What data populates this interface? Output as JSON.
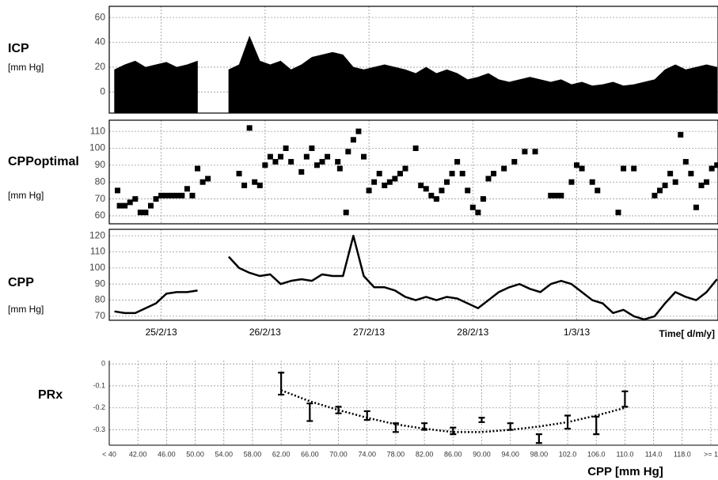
{
  "chart_data": [
    {
      "type": "area",
      "title": "ICP",
      "ylabel": "[mm Hg]",
      "color": "#000000",
      "grid": true,
      "xlim": [
        24.5,
        30.36
      ],
      "ylim": [
        -17,
        69
      ],
      "yticks": [
        0,
        20,
        40,
        60
      ],
      "x": [
        24.55,
        24.65,
        24.75,
        24.85,
        24.95,
        25.05,
        25.15,
        25.25,
        25.35,
        25.45,
        25.55,
        25.65,
        25.75,
        25.85,
        25.95,
        26.05,
        26.15,
        26.25,
        26.35,
        26.45,
        26.55,
        26.65,
        26.75,
        26.85,
        26.95,
        27.05,
        27.15,
        27.25,
        27.35,
        27.45,
        27.55,
        27.65,
        27.75,
        27.85,
        27.95,
        28.05,
        28.15,
        28.25,
        28.35,
        28.45,
        28.55,
        28.65,
        28.75,
        28.85,
        28.95,
        29.05,
        29.15,
        29.25,
        29.35,
        29.45,
        29.55,
        29.65,
        29.75,
        29.85,
        29.95,
        30.05,
        30.15,
        30.25,
        30.35
      ],
      "values": [
        18,
        22,
        25,
        20,
        22,
        24,
        20,
        22,
        25,
        null,
        null,
        18,
        22,
        45,
        25,
        22,
        25,
        18,
        22,
        28,
        30,
        32,
        30,
        20,
        18,
        20,
        22,
        20,
        18,
        15,
        20,
        15,
        18,
        15,
        10,
        12,
        15,
        10,
        8,
        10,
        12,
        10,
        8,
        10,
        6,
        8,
        5,
        6,
        8,
        5,
        6,
        8,
        10,
        18,
        22,
        18,
        20,
        22,
        20
      ]
    },
    {
      "type": "scatter",
      "title": "CPPoptimal",
      "ylabel": "[mm Hg]",
      "color": "#000000",
      "grid": true,
      "xlim": [
        24.5,
        30.36
      ],
      "ylim": [
        55.3,
        116.6
      ],
      "yticks": [
        60,
        70,
        80,
        90,
        100,
        110
      ],
      "x": [
        24.58,
        24.6,
        24.65,
        24.7,
        24.75,
        24.8,
        24.85,
        24.9,
        24.95,
        25.0,
        25.05,
        25.1,
        25.15,
        25.2,
        25.25,
        25.3,
        25.35,
        25.4,
        25.45,
        25.75,
        25.8,
        25.85,
        25.9,
        25.95,
        26.0,
        26.05,
        26.1,
        26.15,
        26.2,
        26.25,
        26.35,
        26.4,
        26.45,
        26.5,
        26.55,
        26.6,
        26.7,
        26.72,
        26.78,
        26.8,
        26.85,
        26.9,
        26.95,
        27.0,
        27.05,
        27.1,
        27.15,
        27.2,
        27.25,
        27.3,
        27.35,
        27.45,
        27.5,
        27.55,
        27.6,
        27.65,
        27.7,
        27.75,
        27.8,
        27.85,
        27.9,
        27.95,
        28.0,
        28.05,
        28.1,
        28.15,
        28.2,
        28.3,
        28.4,
        28.5,
        28.6,
        28.75,
        28.8,
        28.85,
        28.95,
        29.0,
        29.05,
        29.15,
        29.2,
        29.4,
        29.45,
        29.55,
        29.75,
        29.8,
        29.85,
        29.9,
        29.95,
        30.0,
        30.05,
        30.1,
        30.15,
        30.2,
        30.25,
        30.3,
        30.35
      ],
      "values": [
        75,
        66,
        66,
        68,
        70,
        62,
        62,
        66,
        70,
        72,
        72,
        72,
        72,
        72,
        76,
        72,
        88,
        80,
        82,
        85,
        78,
        112,
        80,
        78,
        90,
        95,
        92,
        95,
        100,
        92,
        86,
        95,
        100,
        90,
        92,
        95,
        92,
        88,
        62,
        98,
        105,
        110,
        95,
        75,
        80,
        85,
        78,
        80,
        82,
        85,
        88,
        100,
        78,
        76,
        72,
        70,
        75,
        80,
        85,
        92,
        85,
        75,
        65,
        62,
        70,
        82,
        85,
        88,
        92,
        98,
        98,
        72,
        72,
        72,
        80,
        90,
        88,
        80,
        75,
        62,
        88,
        88,
        72,
        75,
        78,
        85,
        80,
        108,
        92,
        85,
        65,
        78,
        80,
        88,
        90
      ]
    },
    {
      "type": "line",
      "title": "CPP",
      "ylabel": "[mm Hg]",
      "color": "#000000",
      "grid": true,
      "xlabel": "Time[ d/m/y]",
      "xlim": [
        24.5,
        30.36
      ],
      "ylim": [
        67.5,
        124
      ],
      "yticks": [
        70,
        80,
        90,
        100,
        110,
        120
      ],
      "xticks": [
        {
          "value": 25,
          "label": "25/2/13"
        },
        {
          "value": 26,
          "label": "26/2/13"
        },
        {
          "value": 27,
          "label": "27/2/13"
        },
        {
          "value": 28,
          "label": "28/2/13"
        },
        {
          "value": 29,
          "label": "1/3/13"
        }
      ],
      "x": [
        24.55,
        24.65,
        24.75,
        24.85,
        24.95,
        25.05,
        25.15,
        25.25,
        25.35,
        25.45,
        25.55,
        25.65,
        25.75,
        25.85,
        25.95,
        26.05,
        26.15,
        26.25,
        26.35,
        26.45,
        26.55,
        26.65,
        26.75,
        26.85,
        26.95,
        27.05,
        27.15,
        27.25,
        27.35,
        27.45,
        27.55,
        27.65,
        27.75,
        27.85,
        27.95,
        28.05,
        28.15,
        28.25,
        28.35,
        28.45,
        28.55,
        28.65,
        28.75,
        28.85,
        28.95,
        29.05,
        29.15,
        29.25,
        29.35,
        29.45,
        29.55,
        29.65,
        29.75,
        29.85,
        29.95,
        30.05,
        30.15,
        30.25,
        30.35
      ],
      "values": [
        73,
        72,
        72,
        75,
        78,
        84,
        85,
        85,
        86,
        null,
        null,
        107,
        100,
        97,
        95,
        96,
        90,
        92,
        93,
        92,
        96,
        95,
        95,
        120,
        95,
        88,
        88,
        86,
        82,
        80,
        82,
        80,
        82,
        81,
        78,
        75,
        80,
        85,
        88,
        90,
        87,
        85,
        90,
        92,
        90,
        85,
        80,
        78,
        72,
        74,
        70,
        68,
        70,
        78,
        85,
        82,
        80,
        85,
        93
      ]
    },
    {
      "type": "errorbar",
      "title": "PRx",
      "color": "#000000",
      "grid": true,
      "xlabel": "CPP [mm Hg]",
      "ylim": [
        -0.37,
        0.015
      ],
      "yticks": [
        0,
        -0.1,
        -0.2,
        -0.3
      ],
      "categories": [
        "< 40",
        "42.00",
        "46.00",
        "50.00",
        "54.00",
        "58.00",
        "62.00",
        "66.00",
        "70.00",
        "74.00",
        "78.00",
        "82.00",
        "86.00",
        "90.00",
        "94.00",
        "98.00",
        "102.0",
        "106.0",
        "110.0",
        "114.0",
        "118.0",
        ">= 1"
      ],
      "values": [
        null,
        null,
        null,
        null,
        null,
        null,
        -0.09,
        -0.22,
        -0.21,
        -0.235,
        -0.29,
        -0.285,
        -0.305,
        -0.255,
        -0.285,
        -0.34,
        -0.265,
        -0.28,
        -0.16,
        null,
        null,
        null
      ],
      "errors": [
        null,
        null,
        null,
        null,
        null,
        null,
        0.05,
        0.04,
        0.015,
        0.02,
        0.02,
        0.015,
        0.015,
        0.01,
        0.015,
        0.02,
        0.03,
        0.04,
        0.035,
        null,
        null,
        null
      ],
      "trend": [
        null,
        null,
        null,
        null,
        null,
        null,
        -0.12,
        -0.17,
        -0.21,
        -0.245,
        -0.275,
        -0.295,
        -0.31,
        -0.31,
        -0.3,
        -0.285,
        -0.265,
        -0.235,
        -0.2,
        null,
        null,
        null
      ]
    }
  ]
}
